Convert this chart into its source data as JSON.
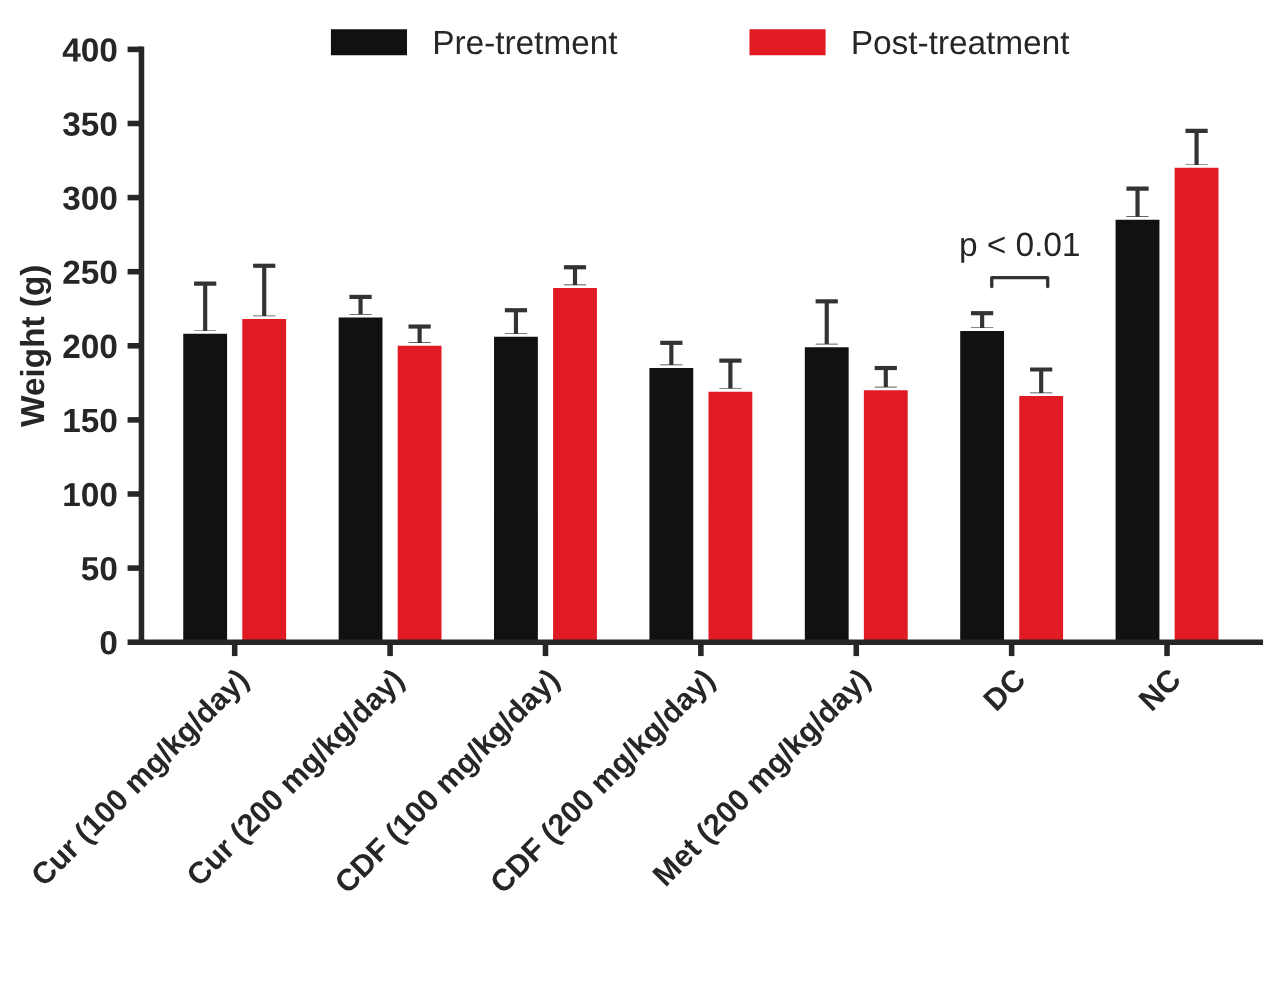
{
  "chart_data": {
    "type": "bar",
    "ylabel": "Weight (g)",
    "categories": [
      "Cur (100 mg/kg/day)",
      "Cur (200 mg/kg/day)",
      "CDF (100 mg/kg/day)",
      "CDF (200 mg/kg/day)",
      "Met (200 mg/kg/day)",
      "DC",
      "NC"
    ],
    "series": [
      {
        "name": "Pre-tretment",
        "color": "#111111",
        "values": [
          209,
          220,
          207,
          186,
          200,
          211,
          286
        ],
        "errors": [
          [
            209,
            242
          ],
          [
            220,
            233
          ],
          [
            207,
            224
          ],
          [
            186,
            202
          ],
          [
            200,
            230
          ],
          [
            211,
            222
          ],
          [
            286,
            306
          ]
        ]
      },
      {
        "name": "Post-treatment",
        "color": "#e01b24",
        "values": [
          219,
          201,
          240,
          170,
          171,
          167,
          321
        ],
        "errors": [
          [
            219,
            254
          ],
          [
            201,
            213
          ],
          [
            240,
            253
          ],
          [
            170,
            190
          ],
          [
            171,
            185
          ],
          [
            167,
            184
          ],
          [
            321,
            345
          ]
        ]
      }
    ],
    "ylim": [
      0,
      400
    ],
    "yticks": [
      0,
      50,
      100,
      150,
      200,
      250,
      300,
      350,
      400
    ],
    "annotations": [
      "p < 0.01"
    ],
    "legend": "top",
    "grid": false
  }
}
